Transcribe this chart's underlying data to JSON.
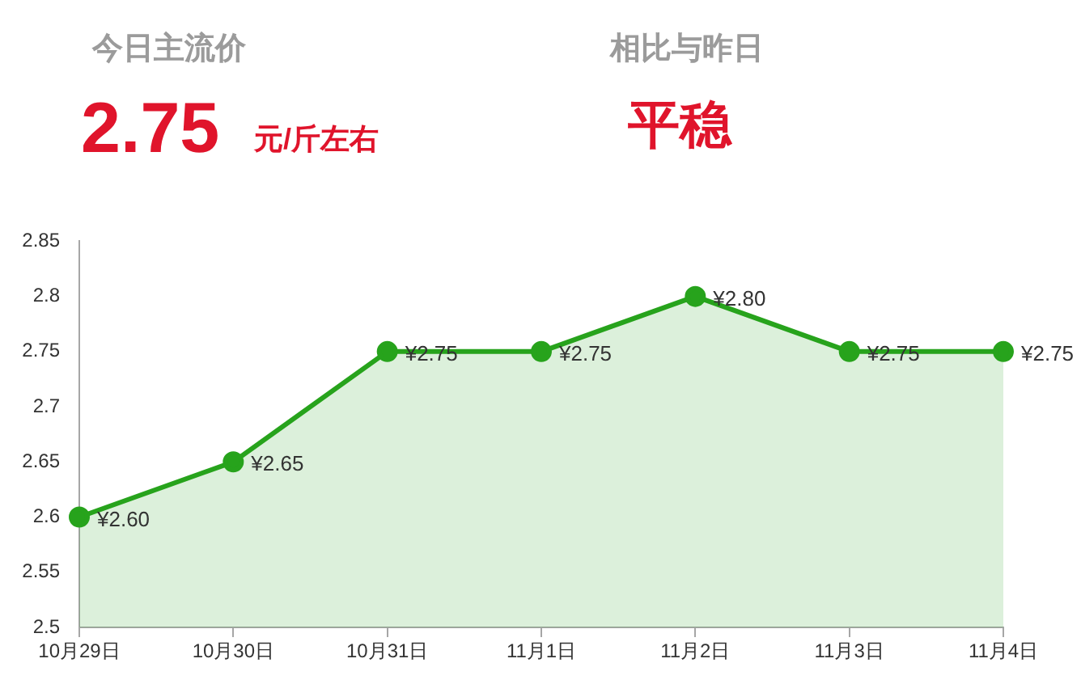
{
  "chart_data": {
    "type": "area",
    "annotations": [
      "今日主流价",
      "2.75",
      "元/斤左右",
      "相比与昨日",
      "平稳"
    ],
    "categories": [
      "10月29日",
      "10月30日",
      "10月31日",
      "11月1日",
      "11月2日",
      "11月3日",
      "11月4日"
    ],
    "series": [
      {
        "color": "#27a31c",
        "values": [
          2.6,
          2.65,
          2.75,
          2.75,
          2.8,
          2.75,
          2.75
        ],
        "value_labels": [
          "¥2.60",
          "¥2.65",
          "¥2.75",
          "¥2.75",
          "¥2.80",
          "¥2.75",
          "¥2.75"
        ]
      }
    ],
    "ylim": [
      2.5,
      2.85
    ],
    "yticks": [
      2.5,
      2.55,
      2.6,
      2.65,
      2.7,
      2.75,
      2.8,
      2.85
    ],
    "grid": false,
    "legend": false,
    "marker": "circle",
    "line_style": "solid"
  }
}
